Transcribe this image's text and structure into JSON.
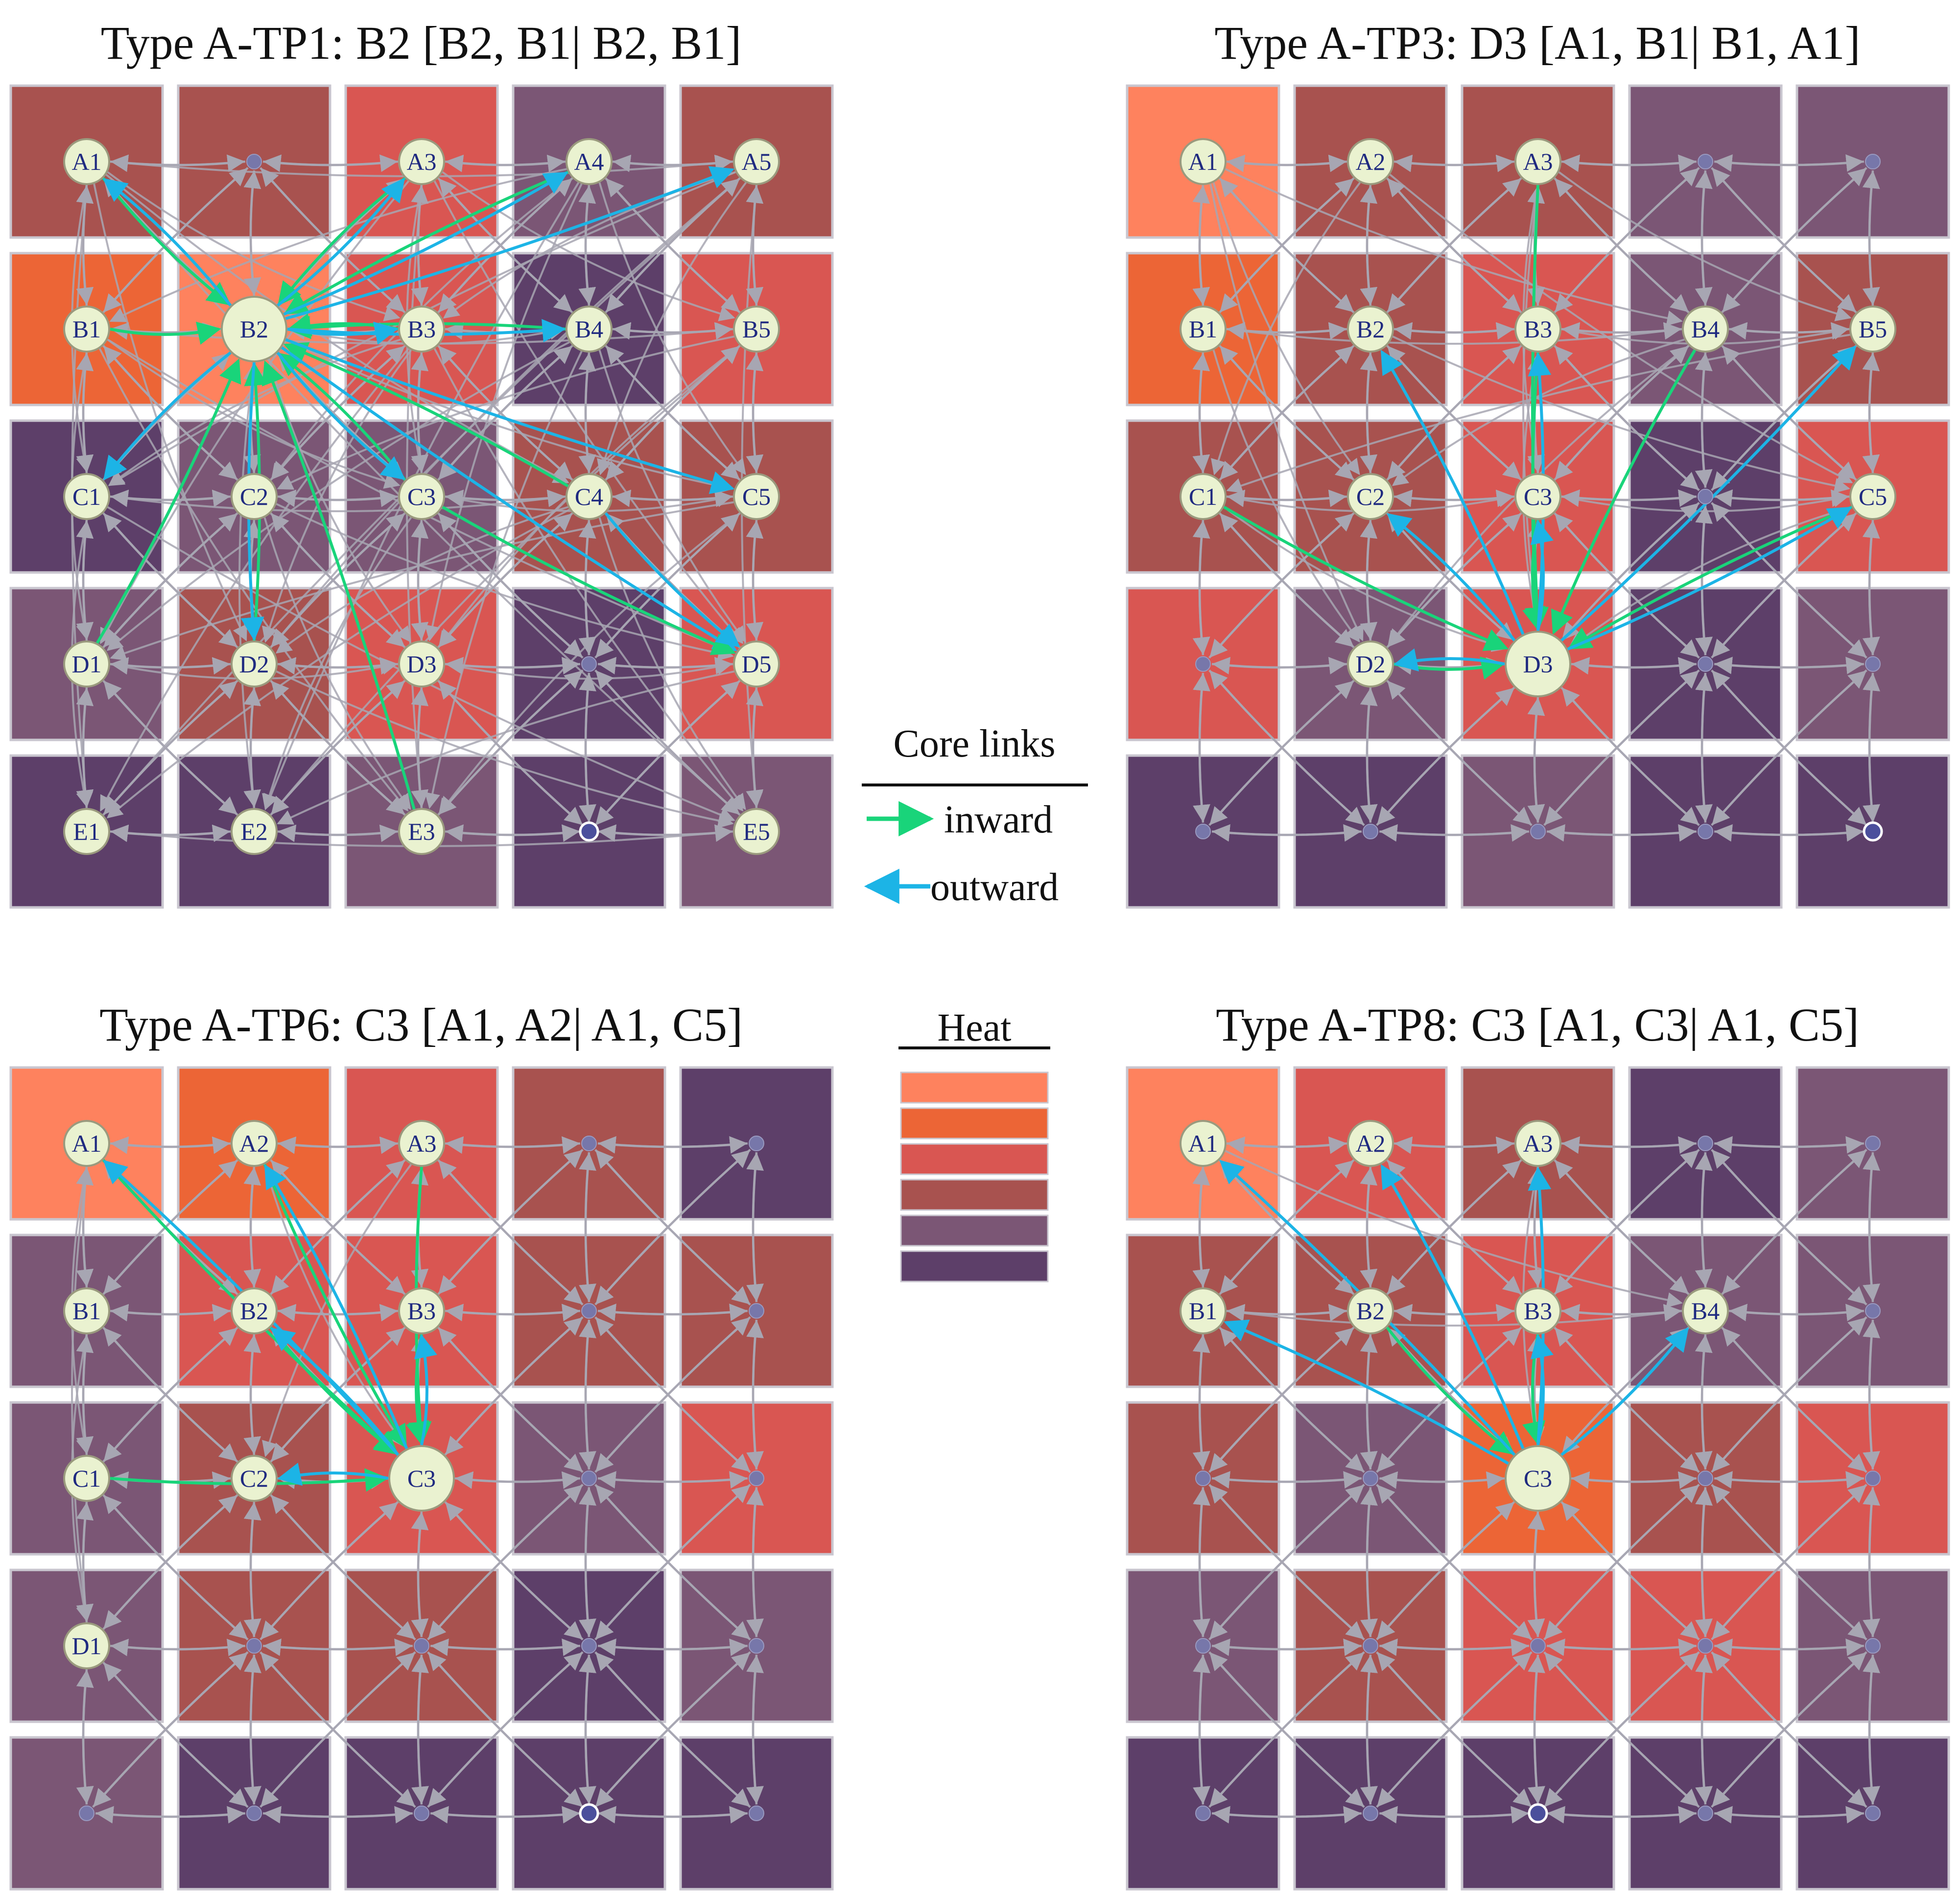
{
  "colors": {
    "heat_1": "#fe825e",
    "heat_2": "#ec6536",
    "heat_3": "#d95652",
    "heat_4": "#a8524f",
    "heat_5": "#7b5675",
    "heat_6": "#5d3f69",
    "edge_gray": "#a7a6b2",
    "inward": "#19d47a",
    "outward": "#1cb4e6",
    "node_fill": "#eaf2d0",
    "node_stroke": "#9a9a7e",
    "plain_node": "#7777aa"
  },
  "panels": [
    {
      "title": "Type A-TP1: B2 [B2, B1| B2, B1]",
      "core": "B2",
      "grid_heat": [
        [
          4,
          4,
          3,
          5,
          4
        ],
        [
          2,
          1,
          3,
          6,
          3
        ],
        [
          6,
          5,
          5,
          4,
          4
        ],
        [
          5,
          4,
          3,
          6,
          3
        ],
        [
          6,
          6,
          5,
          6,
          5
        ]
      ],
      "labeled": [
        "A1",
        "A3",
        "A4",
        "A5",
        "B1",
        "B2",
        "B3",
        "B4",
        "B5",
        "C1",
        "C2",
        "C3",
        "C4",
        "C5",
        "D1",
        "D2",
        "D3",
        "D5",
        "E1",
        "E2",
        "E3",
        "E5"
      ],
      "unlabeled": [
        "A2",
        "D4"
      ],
      "start_cell": "E4",
      "inward_from": [
        "A1",
        "A3",
        "A4",
        "B1",
        "B3",
        "B4",
        "C3",
        "C4",
        "D1",
        "D2",
        "E3"
      ],
      "outward_to": [
        "A1",
        "A3",
        "A4",
        "A5",
        "B3",
        "B4",
        "C1",
        "C3",
        "C5",
        "D2",
        "D5"
      ],
      "extra_core": [
        [
          "C3",
          "D5",
          "inward"
        ],
        [
          "C4",
          "D5",
          "outward"
        ]
      ]
    },
    {
      "title": "Type A-TP3: D3 [A1, B1| B1, A1]",
      "core": "D3",
      "grid_heat": [
        [
          1,
          4,
          4,
          5,
          5
        ],
        [
          2,
          4,
          3,
          5,
          4
        ],
        [
          4,
          4,
          3,
          6,
          3
        ],
        [
          3,
          5,
          3,
          6,
          5
        ],
        [
          6,
          6,
          5,
          6,
          6
        ]
      ],
      "labeled": [
        "A1",
        "A2",
        "A3",
        "B1",
        "B2",
        "B3",
        "B4",
        "B5",
        "C1",
        "C2",
        "C3",
        "C5",
        "D2",
        "D3"
      ],
      "unlabeled": [
        "A4",
        "A5",
        "C4",
        "D1",
        "D4",
        "D5",
        "E1",
        "E2",
        "E3",
        "E4"
      ],
      "start_cell": "E5",
      "inward_from": [
        "A3",
        "B3",
        "B4",
        "C1",
        "C3",
        "C5",
        "D2"
      ],
      "outward_to": [
        "B2",
        "B3",
        "B5",
        "C2",
        "C3",
        "C5",
        "D2"
      ],
      "extra_core": []
    },
    {
      "title": "Type A-TP6: C3 [A1, A2| A1, C5]",
      "core": "C3",
      "grid_heat": [
        [
          1,
          2,
          3,
          4,
          6
        ],
        [
          5,
          3,
          3,
          4,
          4
        ],
        [
          5,
          4,
          3,
          5,
          3
        ],
        [
          5,
          4,
          4,
          6,
          5
        ],
        [
          5,
          6,
          6,
          6,
          6
        ]
      ],
      "labeled": [
        "A1",
        "A2",
        "A3",
        "B1",
        "B2",
        "B3",
        "C1",
        "C2",
        "C3",
        "D1"
      ],
      "unlabeled": [
        "A4",
        "A5",
        "B4",
        "B5",
        "C4",
        "C5",
        "D2",
        "D3",
        "D4",
        "D5",
        "E1",
        "E2",
        "E3",
        "E5"
      ],
      "start_cell": "E4",
      "inward_from": [
        "A1",
        "A2",
        "A3",
        "B2",
        "B3",
        "C1"
      ],
      "outward_to": [
        "A1",
        "A2",
        "B2",
        "B3",
        "C2"
      ],
      "extra_core": []
    },
    {
      "title": "Type A-TP8: C3 [A1, C3| A1, C5]",
      "core": "C3",
      "grid_heat": [
        [
          1,
          3,
          4,
          6,
          5
        ],
        [
          4,
          4,
          3,
          5,
          5
        ],
        [
          4,
          5,
          2,
          4,
          3
        ],
        [
          5,
          4,
          3,
          3,
          5
        ],
        [
          6,
          6,
          6,
          6,
          6
        ]
      ],
      "labeled": [
        "A1",
        "A2",
        "A3",
        "B1",
        "B2",
        "B3",
        "B4",
        "C3"
      ],
      "unlabeled": [
        "A4",
        "A5",
        "B5",
        "C1",
        "C2",
        "C4",
        "C5",
        "D1",
        "D2",
        "D3",
        "D4",
        "D5",
        "E1",
        "E2",
        "E4",
        "E5"
      ],
      "start_cell": "E3",
      "inward_from": [
        "B2",
        "B3"
      ],
      "outward_to": [
        "A1",
        "A2",
        "A3",
        "B1",
        "B3",
        "B4"
      ],
      "extra_core": []
    }
  ],
  "legend_links": {
    "title": "Core links",
    "inward_label": "inward",
    "outward_label": "outward"
  },
  "legend_heat": {
    "title": "Heat",
    "levels": [
      1,
      2,
      3,
      4,
      5,
      6
    ]
  }
}
